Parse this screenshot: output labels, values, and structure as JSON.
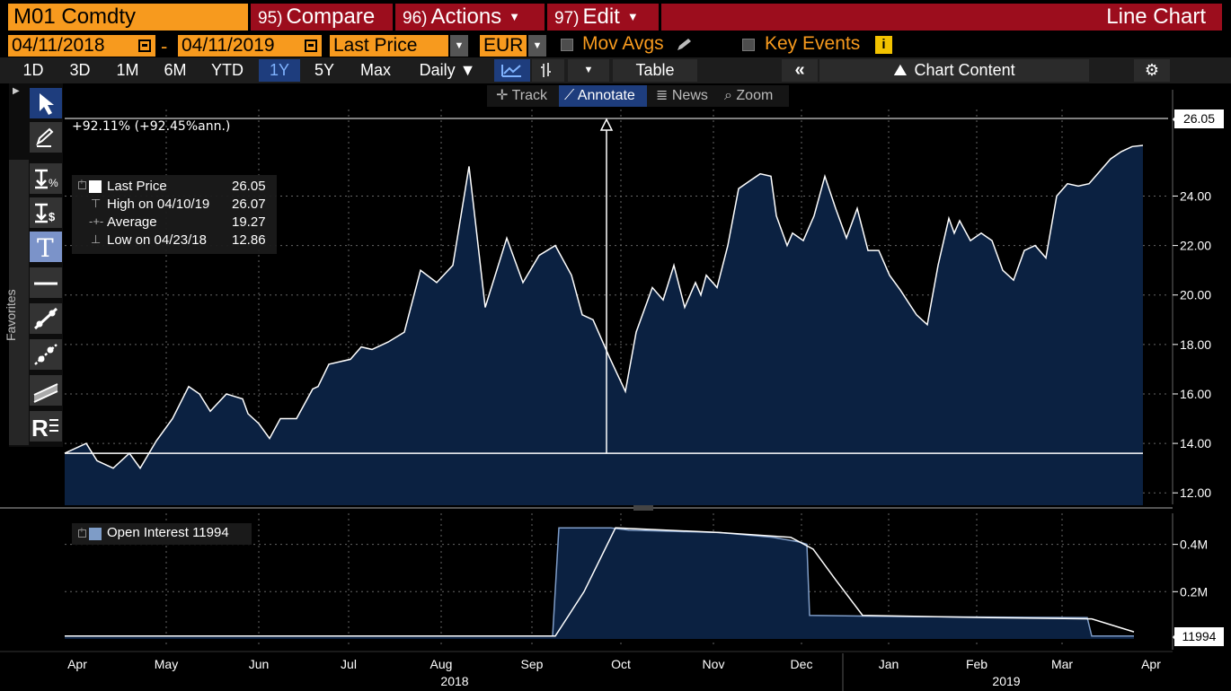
{
  "header": {
    "ticker": "M01 Comdty",
    "compare": {
      "num": "95)",
      "label": "Compare"
    },
    "actions": {
      "num": "96)",
      "label": "Actions"
    },
    "edit": {
      "num": "97)",
      "label": "Edit"
    },
    "title": "Line Chart"
  },
  "controls": {
    "start_date": "04/11/2018",
    "end_date": "04/11/2019",
    "field": "Last Price",
    "currency": "EUR",
    "mov_avgs": "Mov Avgs",
    "key_events": "Key Events",
    "info_icon": "i"
  },
  "periods": [
    "1D",
    "3D",
    "1M",
    "6M",
    "YTD",
    "1Y",
    "5Y",
    "Max"
  ],
  "active_period": "1Y",
  "frequency": "Daily ▼",
  "table_label": "Table",
  "chart_content_label": "Chart Content",
  "chart_toolbar": {
    "track": "Track",
    "annotate": "Annotate",
    "news": "News",
    "zoom": "Zoom"
  },
  "palette": {
    "favorites": "Favorites"
  },
  "colors": {
    "accent_orange": "#f79a1e",
    "header_red": "#9c0d1d",
    "fill_navy": "#0b2141",
    "selection_blue": "#1e3d7d"
  },
  "chart_data": [
    {
      "type": "area",
      "ylim": [
        11.5,
        27.5
      ],
      "yticks": [
        "12.00",
        "14.00",
        "16.00",
        "18.00",
        "20.00",
        "22.00",
        "24.00"
      ],
      "annotation": "+92.11% (+92.45%ann.)",
      "last_value_tag": "26.05",
      "reference_level": 13.6,
      "legend": [
        {
          "label": "Last Price",
          "value": "26.05"
        },
        {
          "label": "High on 04/10/19",
          "value": "26.07"
        },
        {
          "label": "Average",
          "value": "19.27"
        },
        {
          "label": "Low on 04/23/18",
          "value": "12.86"
        }
      ],
      "x": [
        0,
        0.02,
        0.03,
        0.045,
        0.06,
        0.07,
        0.085,
        0.1,
        0.115,
        0.125,
        0.135,
        0.15,
        0.165,
        0.17,
        0.18,
        0.19,
        0.2,
        0.215,
        0.23,
        0.235,
        0.245,
        0.255,
        0.265,
        0.275,
        0.285,
        0.3,
        0.315,
        0.33,
        0.345,
        0.36,
        0.375,
        0.39,
        0.41,
        0.425,
        0.44,
        0.455,
        0.47,
        0.475,
        0.48,
        0.49,
        0.505,
        0.52,
        0.53,
        0.545,
        0.555,
        0.565,
        0.575,
        0.585,
        0.59,
        0.595,
        0.605,
        0.615,
        0.625,
        0.635,
        0.645,
        0.655,
        0.66,
        0.67,
        0.675,
        0.685,
        0.695,
        0.705,
        0.715,
        0.725,
        0.735,
        0.745,
        0.755,
        0.765,
        0.775,
        0.79,
        0.8,
        0.81,
        0.82,
        0.825,
        0.83,
        0.84,
        0.85,
        0.86,
        0.87,
        0.88,
        0.89,
        0.9,
        0.91,
        0.92,
        0.93,
        0.94,
        0.95,
        0.96,
        0.97,
        0.98,
        0.99,
        1.0
      ],
      "values": [
        13.6,
        14.0,
        13.3,
        13.0,
        13.6,
        13.0,
        14.1,
        15.0,
        16.3,
        16.0,
        15.3,
        16.0,
        15.8,
        15.2,
        14.8,
        14.2,
        15.0,
        15.0,
        16.2,
        16.3,
        17.2,
        17.3,
        17.4,
        17.9,
        17.8,
        18.1,
        18.5,
        21.0,
        20.5,
        21.2,
        25.2,
        19.5,
        22.3,
        20.5,
        21.6,
        22.0,
        20.8,
        20.0,
        19.2,
        19.0,
        17.5,
        16.1,
        18.5,
        20.3,
        19.8,
        21.2,
        19.5,
        20.5,
        20.0,
        20.8,
        20.3,
        22.0,
        24.3,
        24.6,
        24.9,
        24.8,
        23.2,
        22.0,
        22.5,
        22.2,
        23.2,
        24.8,
        23.5,
        22.3,
        23.5,
        21.8,
        21.8,
        20.8,
        20.2,
        19.2,
        18.8,
        21.2,
        23.1,
        22.5,
        23.0,
        22.2,
        22.5,
        22.2,
        21.0,
        20.6,
        21.8,
        22.0,
        21.5,
        24.0,
        24.5,
        24.4,
        24.5,
        25.0,
        25.5,
        25.8,
        26.0,
        26.05
      ]
    },
    {
      "type": "area",
      "name": "Open Interest",
      "legend_value": "11994",
      "last_value_tag": "11994",
      "yticks": [
        "0.2M",
        "0.4M"
      ],
      "ylim": [
        0,
        0.52
      ],
      "x": [
        "Apr",
        "May",
        "Jun",
        "Jul",
        "Aug",
        "Sep",
        "Oct",
        "Nov",
        "Dec",
        "Jan",
        "Feb",
        "Mar",
        "Apr"
      ],
      "years": [
        "2018",
        "2019"
      ]
    }
  ]
}
